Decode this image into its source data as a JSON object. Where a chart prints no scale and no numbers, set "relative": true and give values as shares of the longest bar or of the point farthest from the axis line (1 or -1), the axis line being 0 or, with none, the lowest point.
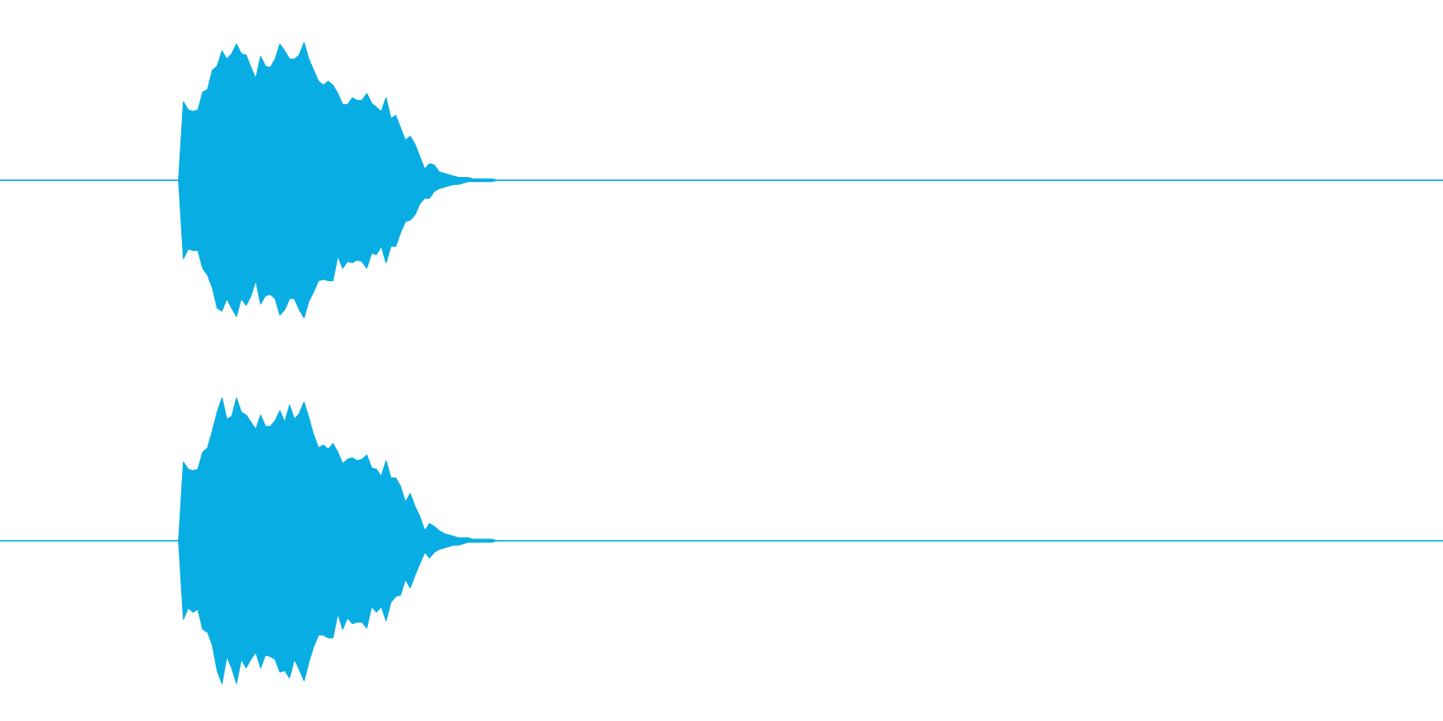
{
  "chart_data": [
    {
      "type": "area",
      "relative": true,
      "categories": [
        null,
        null,
        null,
        null,
        null,
        null,
        null,
        null,
        null,
        null,
        null,
        null,
        null,
        null,
        null,
        null,
        null,
        null,
        null,
        null,
        null,
        null,
        null,
        null,
        null,
        null,
        null,
        null,
        null,
        null,
        null,
        null,
        null,
        null,
        null,
        null,
        null,
        null,
        null,
        null,
        null,
        null,
        null,
        null,
        null,
        null,
        null,
        null,
        null,
        null,
        null,
        null,
        null,
        null,
        null,
        null,
        null,
        null,
        null,
        null,
        null,
        null,
        null,
        null,
        null,
        null,
        null,
        null,
        null,
        null,
        null,
        null,
        null,
        null,
        null,
        null,
        null,
        null,
        null,
        null,
        null,
        null,
        null,
        null,
        null,
        null,
        null,
        null,
        null,
        null,
        null,
        null,
        null,
        null,
        null,
        null,
        null,
        null,
        null,
        null,
        null,
        null,
        null,
        null,
        null,
        null,
        null,
        null,
        null,
        null,
        null,
        null,
        null,
        null,
        null,
        null,
        null,
        null,
        null,
        null,
        null,
        null,
        null,
        null,
        null,
        null,
        null,
        null,
        null,
        null,
        null,
        null,
        null,
        null,
        null,
        null,
        null,
        null,
        null,
        null,
        null,
        null,
        null,
        null,
        null,
        null,
        null,
        null,
        null,
        null,
        null,
        null,
        null,
        null,
        null,
        null,
        null,
        null,
        null,
        null,
        null,
        null,
        null,
        null,
        null,
        null,
        null,
        null,
        null,
        null,
        null,
        null,
        null,
        null,
        null,
        null,
        null,
        null,
        null,
        null,
        null,
        null,
        null,
        null,
        null,
        null,
        null,
        null,
        null,
        null,
        null,
        null,
        null,
        null,
        null,
        null,
        null,
        null,
        null,
        null,
        null,
        null,
        null,
        null,
        null,
        null,
        null,
        null,
        null,
        null,
        null,
        null,
        null,
        null,
        null,
        null,
        null,
        null,
        null,
        null,
        null,
        null,
        null,
        null,
        null,
        null,
        null,
        null,
        null,
        null,
        null,
        null,
        null,
        null,
        null,
        null,
        null,
        null,
        null,
        null,
        null,
        null,
        null,
        null,
        null,
        null,
        null,
        null,
        null,
        null,
        null,
        null,
        null,
        null,
        null,
        null,
        null,
        null,
        null,
        null,
        null,
        null,
        null,
        null,
        null,
        null,
        null,
        null,
        null,
        null,
        null,
        null,
        null,
        null,
        null,
        null,
        null,
        null,
        null,
        null,
        null,
        null,
        null,
        null,
        null,
        null,
        null,
        null,
        null,
        null,
        null,
        null,
        null,
        null,
        null,
        null,
        null,
        null,
        null,
        null
      ],
      "series": [
        {
          "color": "#08aee3",
          "values": [
            0,
            0,
            0,
            0,
            0,
            0,
            0,
            0,
            0,
            0,
            0,
            0,
            0,
            0,
            0,
            0,
            0,
            0,
            0,
            0,
            0,
            0,
            0,
            0,
            0,
            0,
            0,
            0,
            0,
            0,
            0,
            0,
            0,
            0,
            0,
            0,
            0,
            0,
            0.57,
            0.51,
            0.5,
            0.51,
            0.64,
            0.66,
            0.8,
            0.83,
            0.94,
            0.88,
            0.92,
            0.99,
            0.92,
            0.91,
            0.82,
            0.74,
            0.9,
            0.83,
            0.82,
            0.88,
            0.99,
            0.94,
            0.88,
            0.88,
            0.91,
            1.0,
            0.88,
            0.8,
            0.72,
            0.69,
            0.72,
            0.69,
            0.63,
            0.55,
            0.55,
            0.6,
            0.58,
            0.58,
            0.63,
            0.56,
            0.53,
            0.5,
            0.6,
            0.45,
            0.47,
            0.38,
            0.29,
            0.32,
            0.26,
            0.17,
            0.08,
            0.12,
            0.11,
            0.06,
            0.05,
            0.04,
            0.03,
            0.02,
            0.02,
            0.02,
            0.01,
            0.01,
            0.01,
            0.01,
            0.01,
            0,
            0,
            0,
            0,
            0,
            0,
            0,
            0,
            0,
            0,
            0,
            0,
            0,
            0,
            0,
            0,
            0,
            0,
            0,
            0,
            0,
            0,
            0,
            0,
            0,
            0,
            0,
            0,
            0,
            0,
            0,
            0,
            0,
            0,
            0,
            0,
            0,
            0,
            0,
            0,
            0,
            0,
            0,
            0,
            0,
            0,
            0,
            0,
            0,
            0,
            0,
            0,
            0,
            0,
            0,
            0,
            0,
            0,
            0,
            0,
            0,
            0,
            0,
            0,
            0,
            0,
            0,
            0,
            0,
            0,
            0,
            0,
            0,
            0,
            0,
            0,
            0,
            0,
            0,
            0,
            0,
            0,
            0,
            0,
            0,
            0,
            0,
            0,
            0,
            0,
            0,
            0,
            0,
            0,
            0,
            0,
            0,
            0,
            0,
            0,
            0,
            0,
            0,
            0,
            0,
            0,
            0,
            0,
            0,
            0,
            0,
            0,
            0,
            0,
            0,
            0,
            0,
            0,
            0,
            0,
            0,
            0,
            0,
            0,
            0,
            0,
            0,
            0,
            0,
            0,
            0,
            0,
            0,
            0,
            0,
            0,
            0,
            0,
            0,
            0,
            0,
            0,
            0,
            0,
            0,
            0,
            0,
            0,
            0,
            0,
            0,
            0,
            0,
            0,
            0,
            0,
            0,
            0,
            0,
            0,
            0,
            0,
            0,
            0,
            0,
            0,
            0,
            0,
            0,
            0,
            0,
            0,
            0,
            0,
            0,
            0,
            0,
            0,
            0,
            0,
            0,
            0,
            0,
            0,
            0,
            0,
            0,
            0,
            0,
            0,
            0,
            0,
            0,
            0,
            0,
            0,
            0
          ]
        },
        {
          "color": "#08aee3",
          "values": [
            0,
            0,
            0,
            0,
            0,
            0,
            0,
            0,
            0,
            0,
            0,
            0,
            0,
            0,
            0,
            0,
            0,
            0,
            0,
            0,
            0,
            0,
            0,
            0,
            0,
            0,
            0,
            0,
            0,
            0,
            0,
            0,
            0,
            0,
            0,
            0,
            0,
            0,
            -0.57,
            -0.5,
            -0.51,
            -0.51,
            -0.64,
            -0.69,
            -0.78,
            -0.93,
            -0.95,
            -0.86,
            -0.93,
            -0.99,
            -0.86,
            -0.91,
            -0.84,
            -0.73,
            -0.9,
            -0.84,
            -0.83,
            -0.86,
            -0.98,
            -0.94,
            -0.86,
            -0.86,
            -0.94,
            -1.0,
            -0.88,
            -0.81,
            -0.73,
            -0.72,
            -0.73,
            -0.73,
            -0.55,
            -0.64,
            -0.59,
            -0.6,
            -0.58,
            -0.59,
            -0.64,
            -0.53,
            -0.54,
            -0.48,
            -0.6,
            -0.48,
            -0.48,
            -0.38,
            -0.3,
            -0.29,
            -0.25,
            -0.17,
            -0.13,
            -0.13,
            -0.08,
            -0.06,
            -0.05,
            -0.04,
            -0.03,
            -0.03,
            -0.02,
            -0.01,
            -0.01,
            -0.01,
            -0.01,
            -0.01,
            -0.01,
            0,
            0,
            0,
            0,
            0,
            0,
            0,
            0,
            0,
            0,
            0,
            0,
            0,
            0,
            0,
            0,
            0,
            0,
            0,
            0,
            0,
            0,
            0,
            0,
            0,
            0,
            0,
            0,
            0,
            0,
            0,
            0,
            0,
            0,
            0,
            0,
            0,
            0,
            0,
            0,
            0,
            0,
            0,
            0,
            0,
            0,
            0,
            0,
            0,
            0,
            0,
            0,
            0,
            0,
            0,
            0,
            0,
            0,
            0,
            0,
            0,
            0,
            0,
            0,
            0,
            0,
            0,
            0,
            0,
            0,
            0,
            0,
            0,
            0,
            0,
            0,
            0,
            0,
            0,
            0,
            0,
            0,
            0,
            0,
            0,
            0,
            0,
            0,
            0,
            0,
            0,
            0,
            0,
            0,
            0,
            0,
            0,
            0,
            0,
            0,
            0,
            0,
            0,
            0,
            0,
            0,
            0,
            0,
            0,
            0,
            0,
            0,
            0,
            0,
            0,
            0,
            0,
            0,
            0,
            0,
            0,
            0,
            0,
            0,
            0,
            0,
            0,
            0,
            0,
            0,
            0,
            0,
            0,
            0,
            0,
            0,
            0,
            0,
            0,
            0,
            0,
            0,
            0,
            0,
            0,
            0,
            0,
            0,
            0,
            0,
            0,
            0,
            0,
            0,
            0,
            0,
            0,
            0,
            0,
            0,
            0,
            0,
            0,
            0,
            0,
            0,
            0,
            0,
            0,
            0,
            0,
            0,
            0,
            0,
            0,
            0,
            0,
            0,
            0,
            0,
            0,
            0,
            0,
            0,
            0,
            0,
            0,
            0,
            0,
            0,
            0,
            0,
            0,
            0,
            0,
            0,
            0
          ]
        }
      ]
    },
    {
      "type": "area",
      "relative": true,
      "categories": [
        null,
        null,
        null,
        null,
        null,
        null,
        null,
        null,
        null,
        null,
        null,
        null,
        null,
        null,
        null,
        null,
        null,
        null,
        null,
        null,
        null,
        null,
        null,
        null,
        null,
        null,
        null,
        null,
        null,
        null,
        null,
        null,
        null,
        null,
        null,
        null,
        null,
        null,
        null,
        null,
        null,
        null,
        null,
        null,
        null,
        null,
        null,
        null,
        null,
        null,
        null,
        null,
        null,
        null,
        null,
        null,
        null,
        null,
        null,
        null,
        null,
        null,
        null,
        null,
        null,
        null,
        null,
        null,
        null,
        null,
        null,
        null,
        null,
        null,
        null,
        null,
        null,
        null,
        null,
        null,
        null,
        null,
        null,
        null,
        null,
        null,
        null,
        null,
        null,
        null,
        null,
        null,
        null,
        null,
        null,
        null,
        null,
        null,
        null,
        null,
        null,
        null,
        null,
        null,
        null,
        null,
        null,
        null,
        null,
        null,
        null,
        null,
        null,
        null,
        null,
        null,
        null,
        null,
        null,
        null,
        null,
        null,
        null,
        null,
        null,
        null,
        null,
        null,
        null,
        null,
        null,
        null,
        null,
        null,
        null,
        null,
        null,
        null,
        null,
        null,
        null,
        null,
        null,
        null,
        null,
        null,
        null,
        null,
        null,
        null,
        null,
        null,
        null,
        null,
        null,
        null,
        null,
        null,
        null,
        null,
        null,
        null,
        null,
        null,
        null,
        null,
        null,
        null,
        null,
        null,
        null,
        null,
        null,
        null,
        null,
        null,
        null,
        null,
        null,
        null,
        null,
        null,
        null,
        null,
        null,
        null,
        null,
        null,
        null,
        null,
        null,
        null,
        null,
        null,
        null,
        null,
        null,
        null,
        null,
        null,
        null,
        null,
        null,
        null,
        null,
        null,
        null,
        null,
        null,
        null,
        null,
        null,
        null,
        null,
        null,
        null,
        null,
        null,
        null,
        null,
        null,
        null,
        null,
        null,
        null,
        null,
        null,
        null,
        null,
        null,
        null,
        null,
        null,
        null,
        null,
        null,
        null,
        null,
        null,
        null,
        null,
        null,
        null,
        null,
        null,
        null,
        null,
        null,
        null,
        null,
        null,
        null,
        null,
        null,
        null,
        null,
        null,
        null,
        null,
        null,
        null,
        null,
        null,
        null,
        null,
        null,
        null,
        null,
        null,
        null,
        null,
        null,
        null,
        null,
        null,
        null,
        null,
        null,
        null,
        null,
        null,
        null,
        null,
        null,
        null,
        null,
        null,
        null,
        null,
        null,
        null,
        null,
        null,
        null,
        null,
        null,
        null,
        null,
        null,
        null
      ],
      "series": [
        {
          "color": "#08aee3",
          "values": [
            0,
            0,
            0,
            0,
            0,
            0,
            0,
            0,
            0,
            0,
            0,
            0,
            0,
            0,
            0,
            0,
            0,
            0,
            0,
            0,
            0,
            0,
            0,
            0,
            0,
            0,
            0,
            0,
            0,
            0,
            0,
            0,
            0,
            0,
            0,
            0,
            0,
            0,
            0.55,
            0.5,
            0.49,
            0.5,
            0.62,
            0.65,
            0.77,
            0.9,
            1.0,
            0.85,
            0.87,
            1.0,
            0.9,
            0.88,
            0.83,
            0.78,
            0.88,
            0.8,
            0.8,
            0.84,
            0.91,
            0.83,
            0.95,
            0.85,
            0.89,
            0.97,
            0.86,
            0.74,
            0.65,
            0.67,
            0.64,
            0.68,
            0.62,
            0.54,
            0.57,
            0.58,
            0.56,
            0.57,
            0.6,
            0.51,
            0.5,
            0.45,
            0.56,
            0.44,
            0.44,
            0.38,
            0.27,
            0.33,
            0.24,
            0.17,
            0.07,
            0.12,
            0.1,
            0.07,
            0.05,
            0.04,
            0.03,
            0.02,
            0.02,
            0.02,
            0.01,
            0.01,
            0.01,
            0.01,
            0.01,
            0,
            0,
            0,
            0,
            0,
            0,
            0,
            0,
            0,
            0,
            0,
            0,
            0,
            0,
            0,
            0,
            0,
            0,
            0,
            0,
            0,
            0,
            0,
            0,
            0,
            0,
            0,
            0,
            0,
            0,
            0,
            0,
            0,
            0,
            0,
            0,
            0,
            0,
            0,
            0,
            0,
            0,
            0,
            0,
            0,
            0,
            0,
            0,
            0,
            0,
            0,
            0,
            0,
            0,
            0,
            0,
            0,
            0,
            0,
            0,
            0,
            0,
            0,
            0,
            0,
            0,
            0,
            0,
            0,
            0,
            0,
            0,
            0,
            0,
            0,
            0,
            0,
            0,
            0,
            0,
            0,
            0,
            0,
            0,
            0,
            0,
            0,
            0,
            0,
            0,
            0,
            0,
            0,
            0,
            0,
            0,
            0,
            0,
            0,
            0,
            0,
            0,
            0,
            0,
            0,
            0,
            0,
            0,
            0,
            0,
            0,
            0,
            0,
            0,
            0,
            0,
            0,
            0,
            0,
            0,
            0,
            0,
            0,
            0,
            0,
            0,
            0,
            0,
            0,
            0,
            0,
            0,
            0,
            0,
            0,
            0,
            0,
            0,
            0,
            0,
            0,
            0,
            0,
            0,
            0,
            0,
            0,
            0,
            0,
            0,
            0,
            0,
            0,
            0,
            0,
            0,
            0,
            0,
            0,
            0,
            0,
            0,
            0,
            0,
            0,
            0,
            0,
            0,
            0,
            0,
            0,
            0,
            0,
            0,
            0,
            0,
            0,
            0,
            0,
            0,
            0,
            0,
            0,
            0,
            0,
            0,
            0,
            0,
            0,
            0,
            0,
            0,
            0,
            0,
            0,
            0,
            0
          ]
        },
        {
          "color": "#08aee3",
          "values": [
            0,
            0,
            0,
            0,
            0,
            0,
            0,
            0,
            0,
            0,
            0,
            0,
            0,
            0,
            0,
            0,
            0,
            0,
            0,
            0,
            0,
            0,
            0,
            0,
            0,
            0,
            0,
            0,
            0,
            0,
            0,
            0,
            0,
            0,
            0,
            0,
            0,
            0,
            -0.55,
            -0.47,
            -0.5,
            -0.48,
            -0.62,
            -0.64,
            -0.73,
            -0.91,
            -1.0,
            -0.81,
            -0.89,
            -1.0,
            -0.83,
            -0.89,
            -0.83,
            -0.78,
            -0.89,
            -0.8,
            -0.81,
            -0.83,
            -0.92,
            -0.91,
            -0.96,
            -0.83,
            -0.9,
            -0.98,
            -0.85,
            -0.74,
            -0.66,
            -0.66,
            -0.68,
            -0.68,
            -0.51,
            -0.62,
            -0.54,
            -0.58,
            -0.57,
            -0.57,
            -0.61,
            -0.46,
            -0.5,
            -0.46,
            -0.56,
            -0.43,
            -0.39,
            -0.38,
            -0.27,
            -0.33,
            -0.24,
            -0.16,
            -0.08,
            -0.12,
            -0.08,
            -0.06,
            -0.05,
            -0.04,
            -0.03,
            -0.03,
            -0.02,
            -0.01,
            -0.01,
            -0.01,
            -0.01,
            -0.01,
            -0.01,
            0,
            0,
            0,
            0,
            0,
            0,
            0,
            0,
            0,
            0,
            0,
            0,
            0,
            0,
            0,
            0,
            0,
            0,
            0,
            0,
            0,
            0,
            0,
            0,
            0,
            0,
            0,
            0,
            0,
            0,
            0,
            0,
            0,
            0,
            0,
            0,
            0,
            0,
            0,
            0,
            0,
            0,
            0,
            0,
            0,
            0,
            0,
            0,
            0,
            0,
            0,
            0,
            0,
            0,
            0,
            0,
            0,
            0,
            0,
            0,
            0,
            0,
            0,
            0,
            0,
            0,
            0,
            0,
            0,
            0,
            0,
            0,
            0,
            0,
            0,
            0,
            0,
            0,
            0,
            0,
            0,
            0,
            0,
            0,
            0,
            0,
            0,
            0,
            0,
            0,
            0,
            0,
            0,
            0,
            0,
            0,
            0,
            0,
            0,
            0,
            0,
            0,
            0,
            0,
            0,
            0,
            0,
            0,
            0,
            0,
            0,
            0,
            0,
            0,
            0,
            0,
            0,
            0,
            0,
            0,
            0,
            0,
            0,
            0,
            0,
            0,
            0,
            0,
            0,
            0,
            0,
            0,
            0,
            0,
            0,
            0,
            0,
            0,
            0,
            0,
            0,
            0,
            0,
            0,
            0,
            0,
            0,
            0,
            0,
            0,
            0,
            0,
            0,
            0,
            0,
            0,
            0,
            0,
            0,
            0,
            0,
            0,
            0,
            0,
            0,
            0,
            0,
            0,
            0,
            0,
            0,
            0,
            0,
            0,
            0,
            0,
            0,
            0,
            0,
            0,
            0,
            0,
            0,
            0,
            0,
            0,
            0,
            0,
            0,
            0,
            0,
            0,
            0,
            0,
            0,
            0,
            0
          ]
        }
      ]
    }
  ]
}
